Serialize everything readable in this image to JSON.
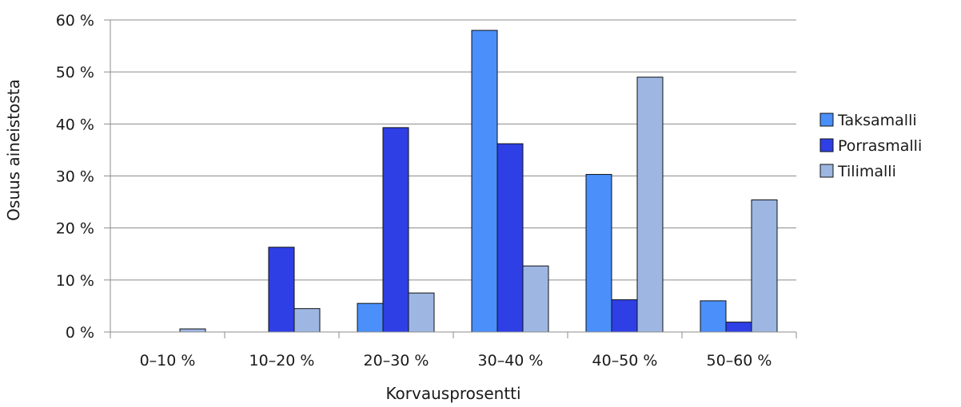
{
  "chart_data": {
    "type": "bar",
    "xlabel": "Korvausprosentti",
    "ylabel": "Osuus aineistosta",
    "categories": [
      "0–10 %",
      "10–20 %",
      "20–30 %",
      "30–40 %",
      "40–50 %",
      "50–60 %"
    ],
    "series": [
      {
        "name": "Taksamalli",
        "color": "#4a8ffa",
        "values": [
          0,
          0,
          5.5,
          58,
          30.3,
          6
        ]
      },
      {
        "name": "Porrasmalli",
        "color": "#2e3fe6",
        "values": [
          0,
          16.3,
          39.3,
          36.2,
          6.2,
          1.9
        ]
      },
      {
        "name": "Tilimalli",
        "color": "#9db7e2",
        "values": [
          0.6,
          4.5,
          7.5,
          12.7,
          49,
          25.4
        ]
      }
    ],
    "yticks": [
      "0 %",
      "10 %",
      "20 %",
      "30 %",
      "40 %",
      "50 %",
      "60 %"
    ],
    "ylim": [
      0,
      60
    ],
    "grid": true,
    "legend": "right"
  }
}
